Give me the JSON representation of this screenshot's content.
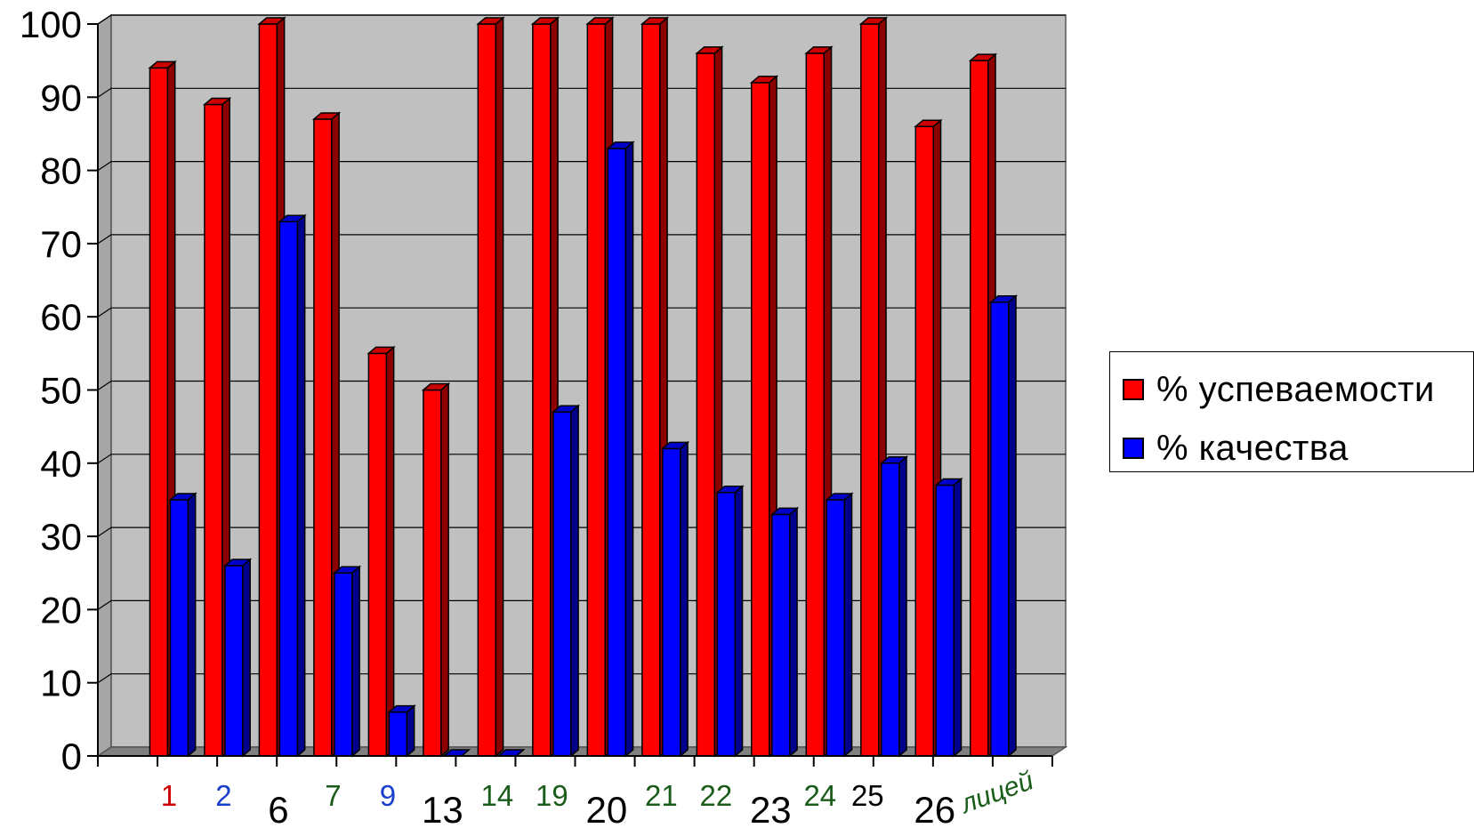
{
  "chart_data": {
    "type": "bar",
    "categories": [
      "1",
      "2",
      "6",
      "7",
      "9",
      "13",
      "14",
      "19",
      "20",
      "21",
      "22",
      "23",
      "24",
      "25",
      "26",
      "лицей"
    ],
    "category_label_colors": [
      "#cc0000",
      "#1a3fcc",
      "#000000",
      "#1a5c1a",
      "#1a3fcc",
      "#000000",
      "#1a5c1a",
      "#1a5c1a",
      "#000000",
      "#1a5c1a",
      "#1a5c1a",
      "#000000",
      "#1a5c1a",
      "#000000",
      "#000000",
      "#1a5c1a"
    ],
    "series": [
      {
        "name": "% успеваемости",
        "color": "#ff0000",
        "values": [
          94,
          89,
          100,
          87,
          55,
          50,
          100,
          100,
          100,
          100,
          96,
          92,
          96,
          100,
          86,
          95
        ]
      },
      {
        "name": "% качества",
        "color": "#0000ff",
        "values": [
          35,
          26,
          73,
          25,
          6,
          0,
          0,
          47,
          83,
          42,
          36,
          33,
          35,
          40,
          37,
          62
        ]
      }
    ],
    "ylim": [
      0,
      100
    ],
    "yticks": [
      0,
      10,
      20,
      30,
      40,
      50,
      60,
      70,
      80,
      90,
      100
    ],
    "grid": true,
    "legend_position": "right",
    "plot_background": "#c0c0c0",
    "title": "",
    "xlabel": "",
    "ylabel": ""
  }
}
